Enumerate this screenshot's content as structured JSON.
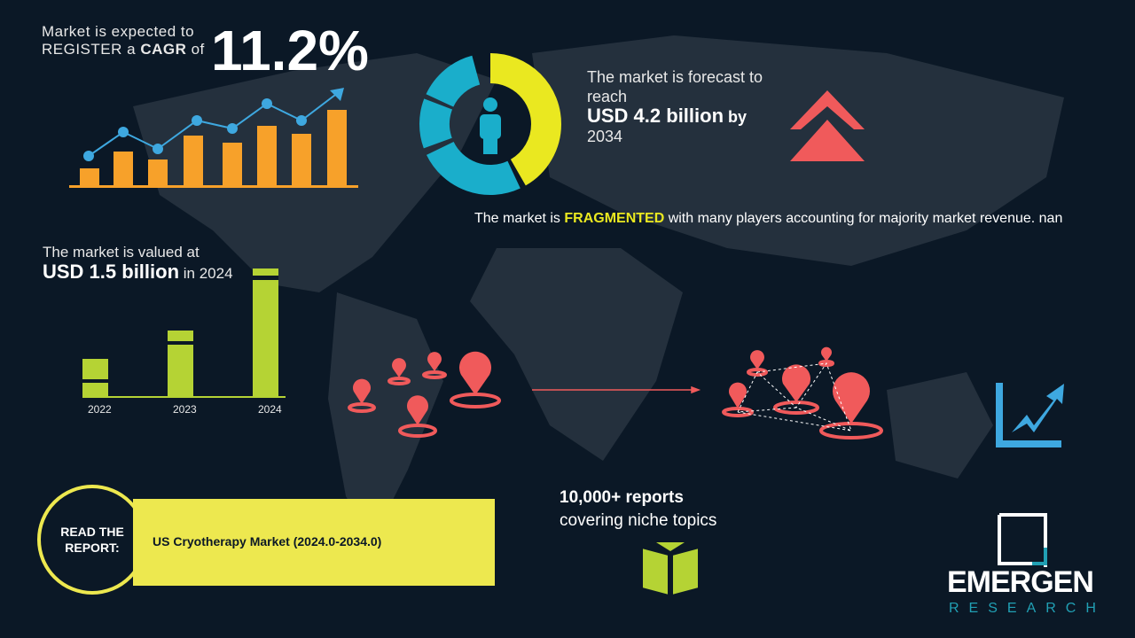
{
  "cagr": {
    "line1": "Market is expected to",
    "line2_pre": "REGISTER a ",
    "line2_bold": "CAGR",
    "line2_post": " of",
    "value": "11.2%"
  },
  "forecast": {
    "pre": "The market is forecast to reach",
    "value": "USD 4.2 billion",
    "by": "by",
    "year": "2034"
  },
  "fragmented": {
    "pre": "The market is ",
    "highlight": "FRAGMENTED",
    "post": " with many players accounting for majority market revenue. nan"
  },
  "valued": {
    "pre": "The market is valued at",
    "value": "USD 1.5 billion",
    "post": "in 2024"
  },
  "years": [
    "2022",
    "2023",
    "2024"
  ],
  "report": {
    "circle": "READ THE REPORT:",
    "title": "US Cryotherapy Market (2024.0-2034.0)"
  },
  "reports_count": {
    "line1": "10,000+ reports",
    "line2": "covering niche topics"
  },
  "logo": {
    "name": "EMERGEN",
    "sub": "RESEARCH"
  },
  "colors": {
    "background": "#0b1826",
    "orange": "#f7a12a",
    "blue": "#3ea8e0",
    "yellow": "#eae820",
    "teal": "#1aaecb",
    "green": "#b5d334",
    "red": "#f05a5b"
  }
}
